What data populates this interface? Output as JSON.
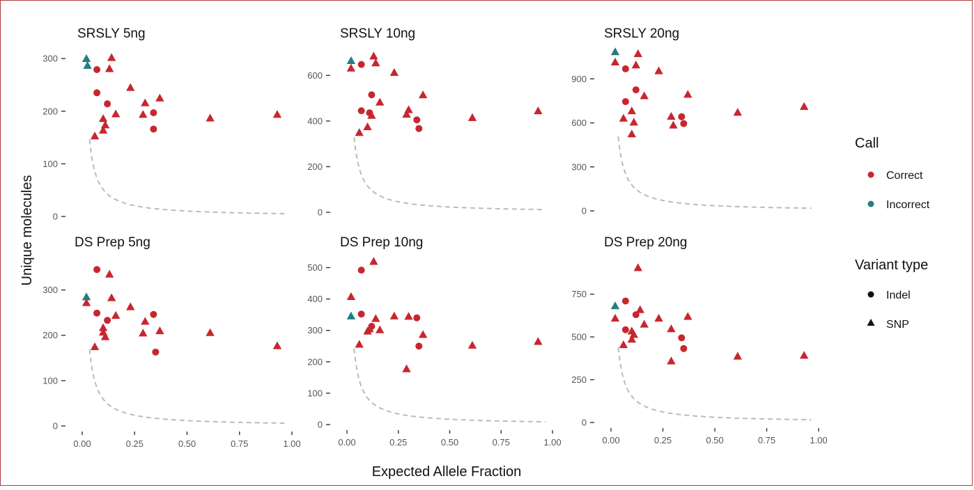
{
  "chart_data": {
    "type": "scatter",
    "xlabel": "Expected Allele Fraction",
    "ylabel": "Unique molecules",
    "xlim": [
      0,
      1
    ],
    "x_ticks": [
      "0.00",
      "0.25",
      "0.50",
      "0.75",
      "1.00"
    ],
    "colors": {
      "Correct": "#c8262f",
      "Incorrect": "#237f7f",
      "threshold": "#bbbbbb"
    },
    "legend": {
      "position": "right",
      "call_title": "Call",
      "call_items": [
        "Correct",
        "Incorrect"
      ],
      "variant_title": "Variant type",
      "variant_items": [
        "Indel",
        "SNP"
      ]
    },
    "threshold_curve": {
      "style": "dashed",
      "description": "detection limit curve"
    },
    "panels": [
      {
        "title": "SRSLY 5ng",
        "ylim": [
          0,
          320
        ],
        "yticks": [
          0,
          100,
          200,
          300
        ],
        "points": [
          {
            "x": 0.02,
            "y": 300,
            "call": "Incorrect",
            "type": "SNP"
          },
          {
            "x": 0.025,
            "y": 287,
            "call": "Incorrect",
            "type": "SNP"
          },
          {
            "x": 0.07,
            "y": 279,
            "call": "Correct",
            "type": "Indel"
          },
          {
            "x": 0.14,
            "y": 302,
            "call": "Correct",
            "type": "SNP"
          },
          {
            "x": 0.13,
            "y": 281,
            "call": "Correct",
            "type": "SNP"
          },
          {
            "x": 0.07,
            "y": 235,
            "call": "Correct",
            "type": "Indel"
          },
          {
            "x": 0.23,
            "y": 245,
            "call": "Correct",
            "type": "SNP"
          },
          {
            "x": 0.37,
            "y": 225,
            "call": "Correct",
            "type": "SNP"
          },
          {
            "x": 0.3,
            "y": 216,
            "call": "Correct",
            "type": "SNP"
          },
          {
            "x": 0.12,
            "y": 214,
            "call": "Correct",
            "type": "Indel"
          },
          {
            "x": 0.34,
            "y": 197,
            "call": "Correct",
            "type": "Indel"
          },
          {
            "x": 0.16,
            "y": 195,
            "call": "Correct",
            "type": "SNP"
          },
          {
            "x": 0.29,
            "y": 194,
            "call": "Correct",
            "type": "SNP"
          },
          {
            "x": 0.93,
            "y": 194,
            "call": "Correct",
            "type": "SNP"
          },
          {
            "x": 0.61,
            "y": 187,
            "call": "Correct",
            "type": "SNP"
          },
          {
            "x": 0.1,
            "y": 186,
            "call": "Correct",
            "type": "SNP"
          },
          {
            "x": 0.11,
            "y": 174,
            "call": "Correct",
            "type": "SNP"
          },
          {
            "x": 0.34,
            "y": 166,
            "call": "Correct",
            "type": "Indel"
          },
          {
            "x": 0.1,
            "y": 164,
            "call": "Correct",
            "type": "SNP"
          },
          {
            "x": 0.06,
            "y": 153,
            "call": "Correct",
            "type": "SNP"
          }
        ]
      },
      {
        "title": "SRSLY 10ng",
        "ylim": [
          0,
          720
        ],
        "yticks": [
          0,
          200,
          400,
          600
        ],
        "points": [
          {
            "x": 0.02,
            "y": 665,
            "call": "Incorrect",
            "type": "SNP"
          },
          {
            "x": 0.02,
            "y": 632,
            "call": "Correct",
            "type": "SNP"
          },
          {
            "x": 0.13,
            "y": 685,
            "call": "Correct",
            "type": "SNP"
          },
          {
            "x": 0.14,
            "y": 655,
            "call": "Correct",
            "type": "SNP"
          },
          {
            "x": 0.07,
            "y": 648,
            "call": "Correct",
            "type": "Indel"
          },
          {
            "x": 0.23,
            "y": 613,
            "call": "Correct",
            "type": "SNP"
          },
          {
            "x": 0.37,
            "y": 515,
            "call": "Correct",
            "type": "SNP"
          },
          {
            "x": 0.12,
            "y": 515,
            "call": "Correct",
            "type": "Indel"
          },
          {
            "x": 0.16,
            "y": 483,
            "call": "Correct",
            "type": "SNP"
          },
          {
            "x": 0.3,
            "y": 450,
            "call": "Correct",
            "type": "SNP"
          },
          {
            "x": 0.93,
            "y": 445,
            "call": "Correct",
            "type": "SNP"
          },
          {
            "x": 0.07,
            "y": 445,
            "call": "Correct",
            "type": "Indel"
          },
          {
            "x": 0.11,
            "y": 436,
            "call": "Correct",
            "type": "Indel"
          },
          {
            "x": 0.29,
            "y": 430,
            "call": "Correct",
            "type": "SNP"
          },
          {
            "x": 0.12,
            "y": 425,
            "call": "Correct",
            "type": "SNP"
          },
          {
            "x": 0.61,
            "y": 415,
            "call": "Correct",
            "type": "SNP"
          },
          {
            "x": 0.34,
            "y": 405,
            "call": "Correct",
            "type": "Indel"
          },
          {
            "x": 0.1,
            "y": 375,
            "call": "Correct",
            "type": "SNP"
          },
          {
            "x": 0.35,
            "y": 367,
            "call": "Correct",
            "type": "Indel"
          },
          {
            "x": 0.06,
            "y": 350,
            "call": "Correct",
            "type": "SNP"
          }
        ]
      },
      {
        "title": "SRSLY 20ng",
        "ylim": [
          0,
          1110
        ],
        "yticks": [
          0,
          300,
          600,
          900
        ],
        "points": [
          {
            "x": 0.02,
            "y": 1085,
            "call": "Incorrect",
            "type": "SNP"
          },
          {
            "x": 0.02,
            "y": 1015,
            "call": "Correct",
            "type": "SNP"
          },
          {
            "x": 0.13,
            "y": 1072,
            "call": "Correct",
            "type": "SNP"
          },
          {
            "x": 0.12,
            "y": 995,
            "call": "Correct",
            "type": "SNP"
          },
          {
            "x": 0.07,
            "y": 968,
            "call": "Correct",
            "type": "Indel"
          },
          {
            "x": 0.23,
            "y": 955,
            "call": "Correct",
            "type": "SNP"
          },
          {
            "x": 0.12,
            "y": 825,
            "call": "Correct",
            "type": "Indel"
          },
          {
            "x": 0.37,
            "y": 795,
            "call": "Correct",
            "type": "SNP"
          },
          {
            "x": 0.16,
            "y": 785,
            "call": "Correct",
            "type": "SNP"
          },
          {
            "x": 0.07,
            "y": 745,
            "call": "Correct",
            "type": "Indel"
          },
          {
            "x": 0.93,
            "y": 712,
            "call": "Correct",
            "type": "SNP"
          },
          {
            "x": 0.1,
            "y": 682,
            "call": "Correct",
            "type": "SNP"
          },
          {
            "x": 0.61,
            "y": 672,
            "call": "Correct",
            "type": "SNP"
          },
          {
            "x": 0.29,
            "y": 645,
            "call": "Correct",
            "type": "SNP"
          },
          {
            "x": 0.34,
            "y": 642,
            "call": "Correct",
            "type": "Indel"
          },
          {
            "x": 0.06,
            "y": 632,
            "call": "Correct",
            "type": "SNP"
          },
          {
            "x": 0.11,
            "y": 605,
            "call": "Correct",
            "type": "SNP"
          },
          {
            "x": 0.35,
            "y": 595,
            "call": "Correct",
            "type": "Indel"
          },
          {
            "x": 0.3,
            "y": 585,
            "call": "Correct",
            "type": "SNP"
          },
          {
            "x": 0.1,
            "y": 525,
            "call": "Correct",
            "type": "SNP"
          }
        ]
      },
      {
        "title": "DS Prep 5ng",
        "ylim": [
          0,
          370
        ],
        "yticks": [
          0,
          100,
          200,
          300
        ],
        "points": [
          {
            "x": 0.07,
            "y": 345,
            "call": "Correct",
            "type": "Indel"
          },
          {
            "x": 0.13,
            "y": 335,
            "call": "Correct",
            "type": "SNP"
          },
          {
            "x": 0.02,
            "y": 285,
            "call": "Incorrect",
            "type": "SNP"
          },
          {
            "x": 0.14,
            "y": 283,
            "call": "Correct",
            "type": "SNP"
          },
          {
            "x": 0.02,
            "y": 272,
            "call": "Correct",
            "type": "SNP"
          },
          {
            "x": 0.23,
            "y": 263,
            "call": "Correct",
            "type": "SNP"
          },
          {
            "x": 0.07,
            "y": 249,
            "call": "Correct",
            "type": "Indel"
          },
          {
            "x": 0.34,
            "y": 246,
            "call": "Correct",
            "type": "Indel"
          },
          {
            "x": 0.16,
            "y": 244,
            "call": "Correct",
            "type": "SNP"
          },
          {
            "x": 0.12,
            "y": 233,
            "call": "Correct",
            "type": "Indel"
          },
          {
            "x": 0.3,
            "y": 231,
            "call": "Correct",
            "type": "SNP"
          },
          {
            "x": 0.1,
            "y": 217,
            "call": "Correct",
            "type": "SNP"
          },
          {
            "x": 0.37,
            "y": 210,
            "call": "Correct",
            "type": "SNP"
          },
          {
            "x": 0.1,
            "y": 207,
            "call": "Correct",
            "type": "SNP"
          },
          {
            "x": 0.61,
            "y": 206,
            "call": "Correct",
            "type": "SNP"
          },
          {
            "x": 0.29,
            "y": 205,
            "call": "Correct",
            "type": "SNP"
          },
          {
            "x": 0.11,
            "y": 197,
            "call": "Correct",
            "type": "SNP"
          },
          {
            "x": 0.93,
            "y": 177,
            "call": "Correct",
            "type": "SNP"
          },
          {
            "x": 0.06,
            "y": 175,
            "call": "Correct",
            "type": "SNP"
          },
          {
            "x": 0.35,
            "y": 163,
            "call": "Correct",
            "type": "Indel"
          }
        ]
      },
      {
        "title": "DS Prep 10ng",
        "ylim": [
          0,
          530
        ],
        "yticks": [
          0,
          100,
          200,
          300,
          400,
          500
        ],
        "points": [
          {
            "x": 0.13,
            "y": 520,
            "call": "Correct",
            "type": "SNP"
          },
          {
            "x": 0.07,
            "y": 492,
            "call": "Correct",
            "type": "Indel"
          },
          {
            "x": 0.02,
            "y": 408,
            "call": "Correct",
            "type": "SNP"
          },
          {
            "x": 0.07,
            "y": 352,
            "call": "Correct",
            "type": "Indel"
          },
          {
            "x": 0.02,
            "y": 346,
            "call": "Incorrect",
            "type": "SNP"
          },
          {
            "x": 0.23,
            "y": 346,
            "call": "Correct",
            "type": "SNP"
          },
          {
            "x": 0.3,
            "y": 345,
            "call": "Correct",
            "type": "SNP"
          },
          {
            "x": 0.34,
            "y": 340,
            "call": "Correct",
            "type": "Indel"
          },
          {
            "x": 0.14,
            "y": 338,
            "call": "Correct",
            "type": "SNP"
          },
          {
            "x": 0.12,
            "y": 313,
            "call": "Correct",
            "type": "Indel"
          },
          {
            "x": 0.11,
            "y": 305,
            "call": "Correct",
            "type": "SNP"
          },
          {
            "x": 0.16,
            "y": 302,
            "call": "Correct",
            "type": "SNP"
          },
          {
            "x": 0.1,
            "y": 298,
            "call": "Correct",
            "type": "SNP"
          },
          {
            "x": 0.37,
            "y": 287,
            "call": "Correct",
            "type": "SNP"
          },
          {
            "x": 0.93,
            "y": 265,
            "call": "Correct",
            "type": "SNP"
          },
          {
            "x": 0.06,
            "y": 256,
            "call": "Correct",
            "type": "SNP"
          },
          {
            "x": 0.61,
            "y": 253,
            "call": "Correct",
            "type": "SNP"
          },
          {
            "x": 0.35,
            "y": 250,
            "call": "Correct",
            "type": "Indel"
          },
          {
            "x": 0.29,
            "y": 178,
            "call": "Correct",
            "type": "SNP"
          }
        ]
      },
      {
        "title": "DS Prep 20ng",
        "ylim": [
          0,
          960
        ],
        "yticks": [
          0,
          250,
          500,
          750
        ],
        "points": [
          {
            "x": 0.13,
            "y": 905,
            "call": "Correct",
            "type": "SNP"
          },
          {
            "x": 0.07,
            "y": 710,
            "call": "Correct",
            "type": "Indel"
          },
          {
            "x": 0.02,
            "y": 682,
            "call": "Incorrect",
            "type": "SNP"
          },
          {
            "x": 0.14,
            "y": 660,
            "call": "Correct",
            "type": "SNP"
          },
          {
            "x": 0.12,
            "y": 630,
            "call": "Correct",
            "type": "Indel"
          },
          {
            "x": 0.37,
            "y": 620,
            "call": "Correct",
            "type": "SNP"
          },
          {
            "x": 0.02,
            "y": 610,
            "call": "Correct",
            "type": "SNP"
          },
          {
            "x": 0.23,
            "y": 610,
            "call": "Correct",
            "type": "SNP"
          },
          {
            "x": 0.16,
            "y": 575,
            "call": "Correct",
            "type": "SNP"
          },
          {
            "x": 0.29,
            "y": 548,
            "call": "Correct",
            "type": "SNP"
          },
          {
            "x": 0.07,
            "y": 542,
            "call": "Correct",
            "type": "Indel"
          },
          {
            "x": 0.1,
            "y": 535,
            "call": "Correct",
            "type": "SNP"
          },
          {
            "x": 0.11,
            "y": 515,
            "call": "Correct",
            "type": "SNP"
          },
          {
            "x": 0.34,
            "y": 495,
            "call": "Correct",
            "type": "Indel"
          },
          {
            "x": 0.1,
            "y": 487,
            "call": "Correct",
            "type": "SNP"
          },
          {
            "x": 0.06,
            "y": 455,
            "call": "Correct",
            "type": "SNP"
          },
          {
            "x": 0.35,
            "y": 432,
            "call": "Correct",
            "type": "Indel"
          },
          {
            "x": 0.93,
            "y": 393,
            "call": "Correct",
            "type": "SNP"
          },
          {
            "x": 0.61,
            "y": 388,
            "call": "Correct",
            "type": "SNP"
          },
          {
            "x": 0.29,
            "y": 360,
            "call": "Correct",
            "type": "SNP"
          }
        ]
      }
    ]
  }
}
